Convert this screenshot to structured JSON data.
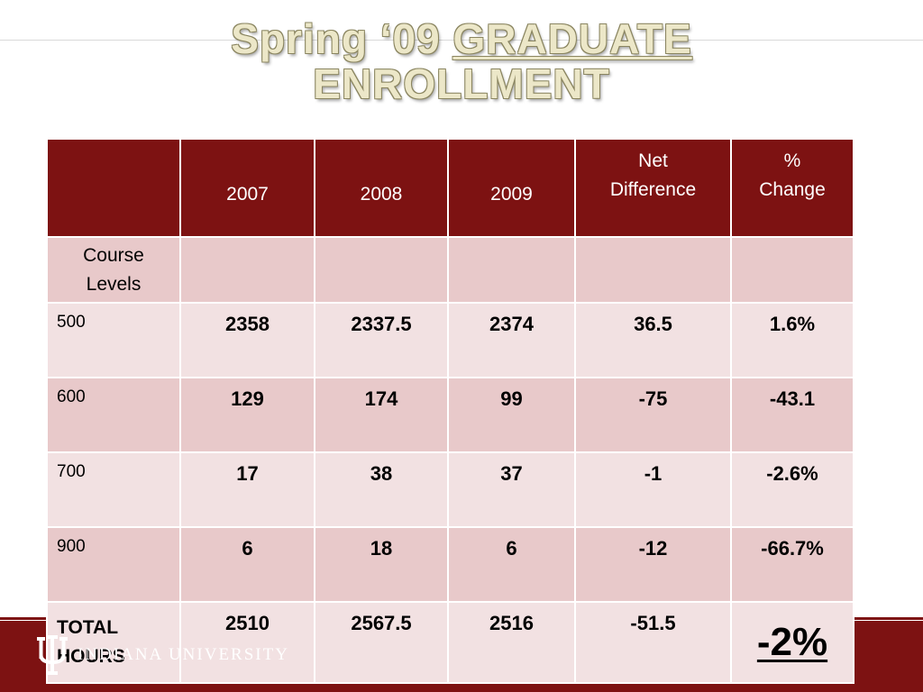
{
  "title": {
    "part1": "Spring ‘09 ",
    "part2_underlined": "GRADUATE",
    "line2": "ENROLLMENT"
  },
  "table": {
    "headers": [
      "",
      "2007",
      "2008",
      "2009",
      "Net Difference",
      "% Change"
    ],
    "header_net_lines": [
      "Net",
      "Difference"
    ],
    "header_pct_lines": [
      "%",
      "Change"
    ],
    "levels_label_lines": [
      "Course",
      "Levels"
    ],
    "rows": [
      {
        "label": "500",
        "y2007": "2358",
        "y2008": "2337.5",
        "y2009": "2374",
        "net": "36.5",
        "pct": "1.6%"
      },
      {
        "label": "600",
        "y2007": "129",
        "y2008": "174",
        "y2009": "99",
        "net": "-75",
        "pct": "-43.1"
      },
      {
        "label": "700",
        "y2007": "17",
        "y2008": "38",
        "y2009": "37",
        "net": "-1",
        "pct": "-2.6%"
      },
      {
        "label": "900",
        "y2007": "6",
        "y2008": "18",
        "y2009": "6",
        "net": "-12",
        "pct": "-66.7%"
      }
    ],
    "total": {
      "label_lines": [
        "TOTAL",
        "HOURS"
      ],
      "y2007": "2510",
      "y2008": "2567.5",
      "y2009": "2516",
      "net": "-51.5",
      "pct": "-2%"
    }
  },
  "footer": {
    "logo_icon": "iu-trident-logo",
    "university_name": "INDIANA UNIVERSITY"
  },
  "colors": {
    "crimson": "#7d1212",
    "row_dark": "#e8c9ca",
    "row_light": "#f2e1e2",
    "title_cream": "#ece7c8"
  }
}
